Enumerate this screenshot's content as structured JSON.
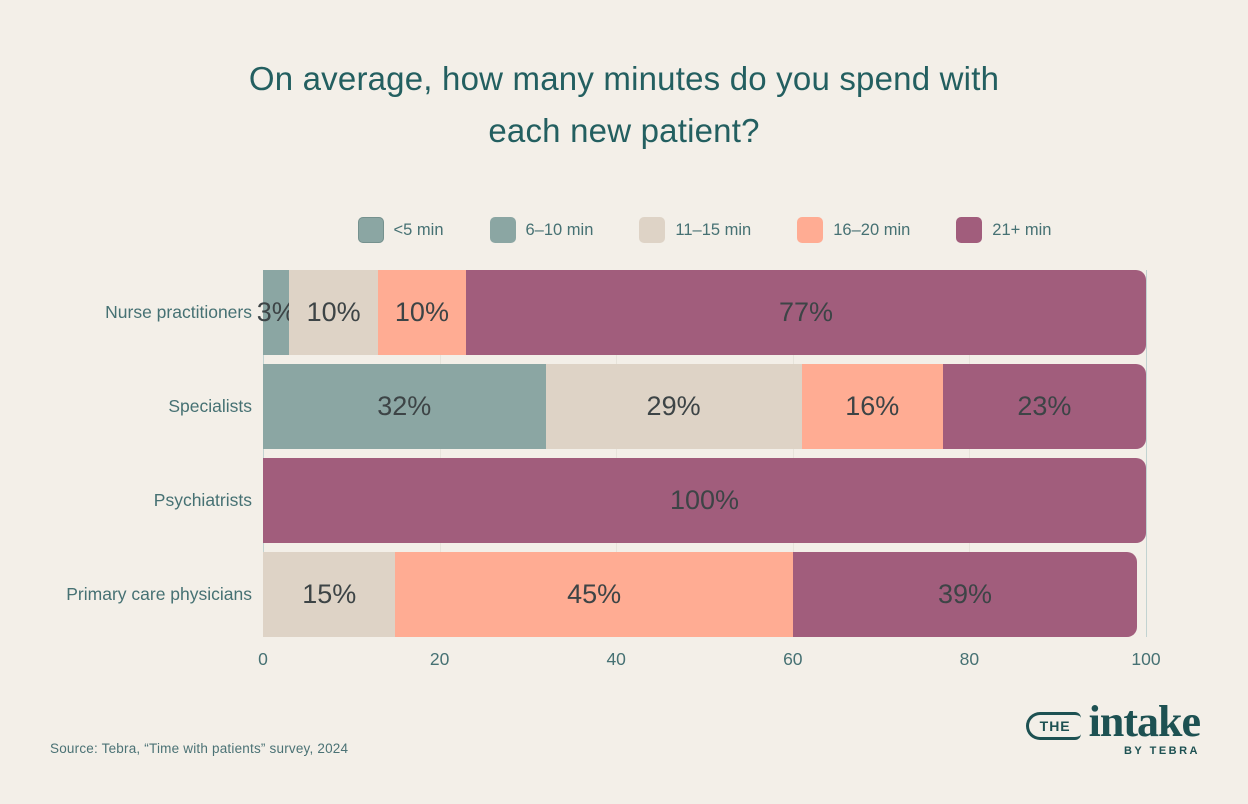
{
  "title": {
    "line1": "On average, how many minutes do you spend with",
    "line2": "each new patient?"
  },
  "chart_data": {
    "type": "bar",
    "subtype": "horizontal-stacked",
    "title": "On average, how many minutes do you spend with each new patient?",
    "categories": [
      "Nurse practitioners",
      "Specialists",
      "Psychiatrists",
      "Primary care physicians"
    ],
    "series": [
      {
        "name": "<5 min",
        "color": "#8ba6a3",
        "pattern": "dotted",
        "values": [
          0,
          0,
          0,
          0
        ]
      },
      {
        "name": "6–10 min",
        "color": "#8ba6a3",
        "values": [
          3,
          32,
          0,
          0
        ]
      },
      {
        "name": "11–15 min",
        "color": "#ded3c6",
        "values": [
          10,
          29,
          0,
          15
        ]
      },
      {
        "name": "16–20 min",
        "color": "#ffac93",
        "values": [
          10,
          16,
          0,
          45
        ]
      },
      {
        "name": "21+ min",
        "color": "#a15d7c",
        "values": [
          77,
          23,
          100,
          39
        ]
      }
    ],
    "value_label_suffix": "%",
    "x_ticks": [
      0,
      20,
      40,
      60,
      80,
      100
    ],
    "xlim": [
      0,
      100
    ],
    "xlabel": "",
    "ylabel": "",
    "grid": "vertical",
    "legend_position": "top"
  },
  "colors": {
    "background": "#f3efe8",
    "title_text": "#235f60",
    "axis_text": "#467173",
    "value_label_text": "#3d4446",
    "gridline_inner": "#e7e4db",
    "gridline_edge": "#c2d3d1"
  },
  "source": "Source: Tebra, “Time with patients” survey, 2024",
  "logo": {
    "the": "THE",
    "intake": "intake",
    "byline": "BY TEBRA"
  }
}
